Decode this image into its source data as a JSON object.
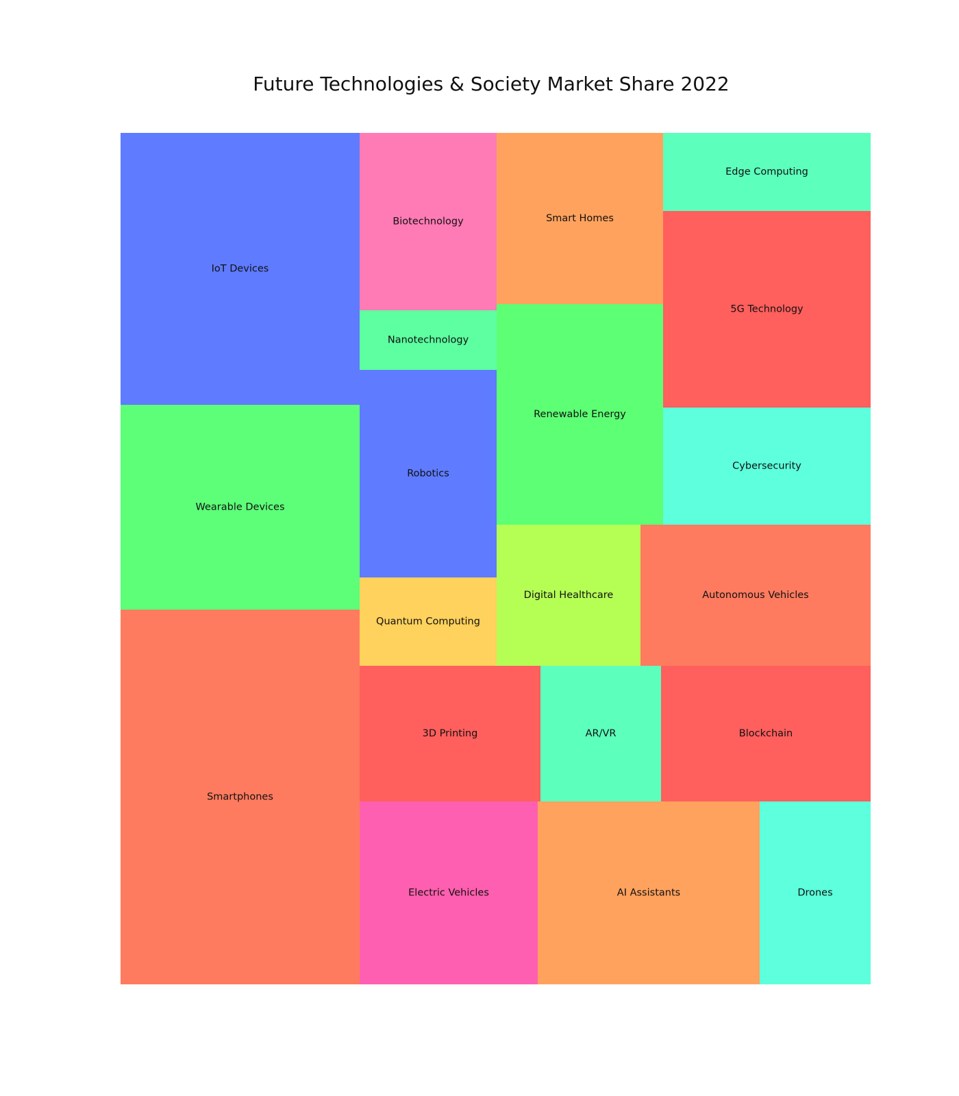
{
  "chart_data": {
    "type": "treemap",
    "title": "Future Technologies & Society Market Share 2022",
    "tiles": [
      {
        "label": "IoT Devices",
        "color": "#5f7bff"
      },
      {
        "label": "Wearable Devices",
        "color": "#5dff79"
      },
      {
        "label": "Smartphones",
        "color": "#ff7b5f"
      },
      {
        "label": "Biotechnology",
        "color": "#ff7bb5"
      },
      {
        "label": "Nanotechnology",
        "color": "#5dffa0"
      },
      {
        "label": "Robotics",
        "color": "#5f7bff"
      },
      {
        "label": "Quantum Computing",
        "color": "#ffd15d"
      },
      {
        "label": "Smart Homes",
        "color": "#ffa25d"
      },
      {
        "label": "Renewable Energy",
        "color": "#5dff74"
      },
      {
        "label": "Edge Computing",
        "color": "#5dffbc"
      },
      {
        "label": "5G Technology",
        "color": "#ff5f5d"
      },
      {
        "label": "Cybersecurity",
        "color": "#5dffdc"
      },
      {
        "label": "Digital Healthcare",
        "color": "#b5ff55"
      },
      {
        "label": "Autonomous Vehicles",
        "color": "#ff7b5f"
      },
      {
        "label": "3D Printing",
        "color": "#ff5f5d"
      },
      {
        "label": "AR/VR",
        "color": "#5dffbc"
      },
      {
        "label": "Blockchain",
        "color": "#ff5f5d"
      },
      {
        "label": "Electric Vehicles",
        "color": "#ff5fb0"
      },
      {
        "label": "AI Assistants",
        "color": "#ffa25d"
      },
      {
        "label": "Drones",
        "color": "#5dffdc"
      }
    ]
  }
}
